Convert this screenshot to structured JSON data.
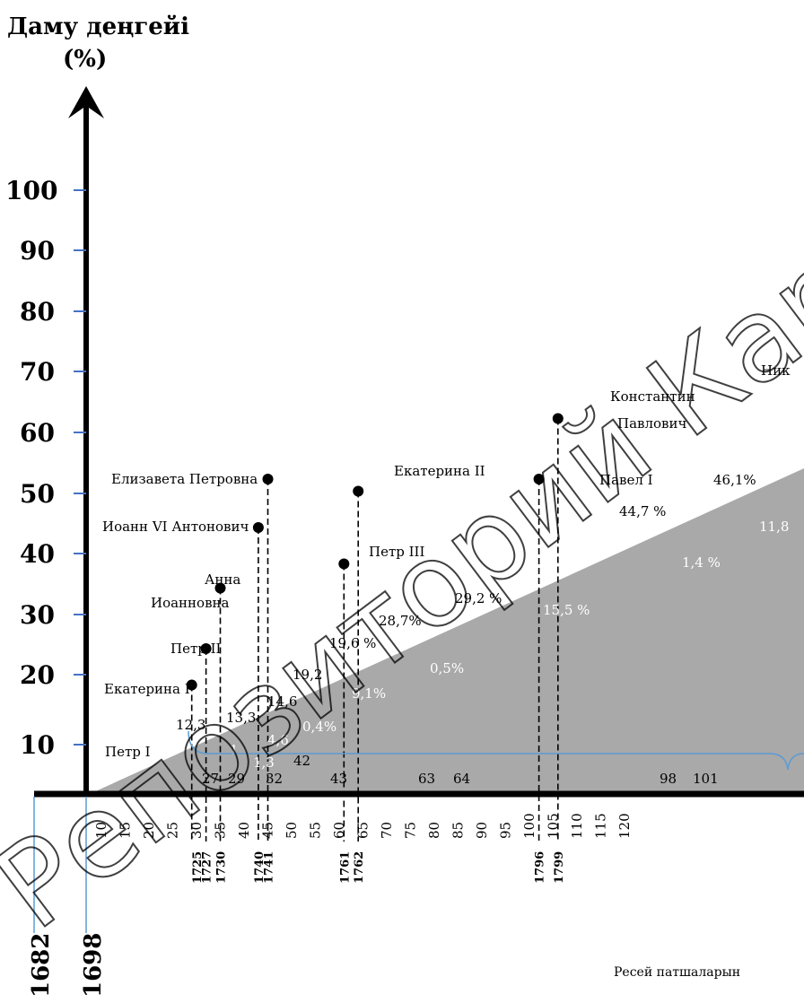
{
  "chart_data": {
    "type": "timeline",
    "ylabel_line1": "Даму деңгейі",
    "ylabel_line2": "(%)",
    "y_ticks": [
      "100",
      "90",
      "80",
      "70",
      "60",
      "50",
      "40",
      "30",
      "20",
      "10"
    ],
    "ylim": [
      0,
      100
    ],
    "x_ticks": [
      "10",
      "15",
      "20",
      "25",
      "30",
      "35",
      "40",
      "45",
      "50",
      "55",
      "60",
      "65",
      "70",
      "75",
      "80",
      "85",
      "90",
      "95",
      "100",
      "105",
      "110",
      "115",
      "120"
    ],
    "trend_area": {
      "color": "#a9a9a9",
      "x_start": 10,
      "y_end": 54
    },
    "rulers": [
      {
        "name": "Петр I",
        "x": 27
      },
      {
        "name": "Екатерина I",
        "x": 29,
        "y": 18
      },
      {
        "name": "Петр II",
        "x": 32,
        "y": 24
      },
      {
        "name": "Анна Иоанновна",
        "x": 35,
        "y": 34
      },
      {
        "name": "Иоанн VI Антонович",
        "x": 43,
        "y": 44
      },
      {
        "name": "Елизавета Петровна",
        "x": 45,
        "y": 52
      },
      {
        "name": "Петр III",
        "x": 61,
        "y": 38
      },
      {
        "name": "Екатерина II",
        "x": 64,
        "y": 50
      },
      {
        "name": "Павел I",
        "x": 102,
        "y": 52
      },
      {
        "name": "Константин Павлович",
        "x": 106,
        "y": 62
      }
    ],
    "ruler_labels": {
      "petr1": "Петр I",
      "ekaterina1": "Екатерина I",
      "petr2": "Петр II",
      "anna_1": "Анна",
      "anna_2": "Иоанновна",
      "ioann6": "Иоанн VI Антонович",
      "elizaveta": "Елизавета Петровна",
      "petr3": "Петр III",
      "ekaterina2": "Екатерина II",
      "pavel1": "Павел I",
      "konstantin_1": "Константин",
      "konstantin_2": "Павлович",
      "nik": "Ник"
    },
    "percent_labels": {
      "p12_3": "12,3",
      "p13_3": "13,3",
      "p14_6": "14,6",
      "p19_2": "19,2",
      "p19_6": "19,6 %",
      "p28_7": "28,7%",
      "p29_2": "29,2 %",
      "p44_7": "44,7 %",
      "p46_1": "46,1%"
    },
    "white_labels": {
      "w1": "1",
      "w1_3": "1,3",
      "w4_6": "4,6",
      "w0_4": "0,4%",
      "w9_1": "9,1%",
      "w0_5": "0,5%",
      "w15_5": "15,5 %",
      "w1_4": "1,4 %",
      "w11_8": "11,8"
    },
    "axis_numbers": {
      "n27": "27",
      "n29": "29",
      "n32": "32",
      "n42": "42",
      "n43": "43",
      "n63": "63",
      "n64": "64",
      "n98": "98",
      "n101": "101"
    },
    "years_small": [
      {
        "label": "1725",
        "x": 30
      },
      {
        "label": "1727",
        "x": 32
      },
      {
        "label": "1730",
        "x": 35
      },
      {
        "label": "1740",
        "x": 43
      },
      {
        "label": "1741",
        "x": 45
      },
      {
        "label": "1761",
        "x": 61
      },
      {
        "label": "1762",
        "x": 64
      },
      {
        "label": "1796",
        "x": 102
      },
      {
        "label": "1799",
        "x": 106
      }
    ],
    "years_big": [
      "1682",
      "1698"
    ],
    "brace_label": "Ресей патшаларын",
    "watermark": "Репозиторий КарГУ"
  }
}
